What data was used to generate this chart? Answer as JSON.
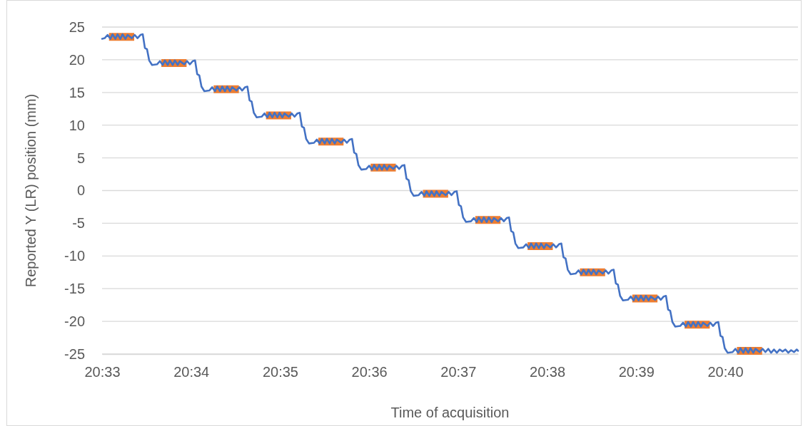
{
  "chart_data": {
    "type": "line",
    "xlabel": "Time of acquisition",
    "ylabel": "Reported Y (LR) position (mm)",
    "xlim": [
      20.55,
      20.6803
    ],
    "xticks": [
      {
        "value": 20.55,
        "label": "20:33"
      },
      {
        "value": 20.566667,
        "label": "20:34"
      },
      {
        "value": 20.583333,
        "label": "20:35"
      },
      {
        "value": 20.6,
        "label": "20:36"
      },
      {
        "value": 20.616667,
        "label": "20:37"
      },
      {
        "value": 20.633333,
        "label": "20:38"
      },
      {
        "value": 20.65,
        "label": "20:39"
      },
      {
        "value": 20.666667,
        "label": "20:40"
      }
    ],
    "ylim": [
      -25,
      25
    ],
    "yticks": [
      -25,
      -20,
      -15,
      -10,
      -5,
      0,
      5,
      10,
      15,
      20,
      25
    ],
    "grid": "y",
    "marker": "none",
    "line_style": "solid",
    "series": [
      {
        "color": "#ed7d31",
        "x": [
          20.5513,
          20.55602,
          20.5565,
          20.5611,
          20.56582,
          20.5663,
          20.57089,
          20.57561,
          20.5761,
          20.58069,
          20.58541,
          20.5859,
          20.59049,
          20.59521,
          20.5957,
          20.60028,
          20.605,
          20.6055,
          20.61008,
          20.6148,
          20.6153,
          20.61988,
          20.6246,
          20.6251,
          20.62967,
          20.63439,
          20.6349,
          20.63947,
          20.64419,
          20.6447,
          20.64927,
          20.65399,
          20.6545,
          20.65906,
          20.66378,
          20.6643,
          20.66886,
          20.67358
        ],
        "values": [
          23.5,
          23.5,
          null,
          19.5,
          19.5,
          null,
          15.5,
          15.5,
          null,
          11.5,
          11.5,
          null,
          7.5,
          7.5,
          null,
          3.5,
          3.5,
          null,
          -0.5,
          -0.5,
          null,
          -4.5,
          -4.5,
          null,
          -8.5,
          -8.5,
          null,
          -12.5,
          -12.5,
          null,
          -16.5,
          -16.5,
          null,
          -20.5,
          -20.5,
          null,
          -24.5,
          -24.5
        ]
      },
      {
        "color": "#4472c4",
        "x": [
          20.55,
          20.55049,
          20.55103,
          20.55156,
          20.55196,
          20.5525,
          20.5529,
          20.55343,
          20.55383,
          20.55437,
          20.55477,
          20.55557,
          20.55611,
          20.55664,
          20.55718,
          20.55762,
          20.55802,
          20.55842,
          20.55882,
          20.55936,
          20.56029,
          20.56083,
          20.56136,
          20.56176,
          20.5623,
          20.5627,
          20.56323,
          20.56363,
          20.56417,
          20.56457,
          20.56537,
          20.56591,
          20.56644,
          20.56698,
          20.56741,
          20.56781,
          20.56821,
          20.56861,
          20.56915,
          20.57008,
          20.57062,
          20.57115,
          20.57155,
          20.57209,
          20.57249,
          20.57302,
          20.57342,
          20.57396,
          20.57436,
          20.57516,
          20.5757,
          20.57623,
          20.57677,
          20.57721,
          20.57761,
          20.57801,
          20.57841,
          20.57895,
          20.57988,
          20.58042,
          20.58095,
          20.58135,
          20.58189,
          20.58229,
          20.58282,
          20.58322,
          20.58376,
          20.58416,
          20.58496,
          20.5855,
          20.58603,
          20.58657,
          20.58701,
          20.58741,
          20.58781,
          20.58821,
          20.58875,
          20.58968,
          20.59022,
          20.59075,
          20.59115,
          20.59169,
          20.59209,
          20.59262,
          20.59302,
          20.59356,
          20.59396,
          20.59476,
          20.5953,
          20.59583,
          20.59637,
          20.5968,
          20.5972,
          20.5976,
          20.598,
          20.59854,
          20.59947,
          20.60001,
          20.60054,
          20.60094,
          20.60148,
          20.60188,
          20.60241,
          20.60281,
          20.60335,
          20.60375,
          20.60455,
          20.60509,
          20.60562,
          20.60616,
          20.6066,
          20.607,
          20.6074,
          20.6078,
          20.60834,
          20.60927,
          20.60981,
          20.61034,
          20.61074,
          20.61128,
          20.61168,
          20.61221,
          20.61261,
          20.61315,
          20.61355,
          20.61435,
          20.61489,
          20.61542,
          20.61596,
          20.6164,
          20.6168,
          20.6172,
          20.6176,
          20.61814,
          20.61907,
          20.61961,
          20.62014,
          20.62054,
          20.62108,
          20.62148,
          20.62201,
          20.62241,
          20.62295,
          20.62335,
          20.62415,
          20.62469,
          20.62522,
          20.62576,
          20.62619,
          20.62659,
          20.62699,
          20.62739,
          20.62793,
          20.62886,
          20.6294,
          20.62993,
          20.63033,
          20.63087,
          20.63127,
          20.6318,
          20.6322,
          20.63274,
          20.63314,
          20.63394,
          20.63448,
          20.63501,
          20.63555,
          20.63599,
          20.63639,
          20.63679,
          20.63719,
          20.63773,
          20.63866,
          20.6392,
          20.63973,
          20.64013,
          20.64067,
          20.64107,
          20.6416,
          20.642,
          20.64254,
          20.64294,
          20.64374,
          20.64428,
          20.64481,
          20.64535,
          20.64579,
          20.64619,
          20.64659,
          20.64699,
          20.64753,
          20.64846,
          20.649,
          20.64953,
          20.64993,
          20.65047,
          20.65087,
          20.6514,
          20.6518,
          20.65234,
          20.65274,
          20.65354,
          20.65408,
          20.65461,
          20.65515,
          20.65558,
          20.65598,
          20.65638,
          20.65678,
          20.65732,
          20.65825,
          20.65879,
          20.65932,
          20.65972,
          20.66026,
          20.66066,
          20.66119,
          20.66159,
          20.66213,
          20.66253,
          20.66333,
          20.66387,
          20.6644,
          20.66494,
          20.66538,
          20.66578,
          20.66618,
          20.66658,
          20.66712,
          20.66805,
          20.66859,
          20.66912,
          20.66952,
          20.67006,
          20.67046,
          20.67099,
          20.67139,
          20.67193,
          20.67233,
          20.67313,
          20.67367,
          20.6742,
          20.67474,
          20.67527,
          20.6758,
          20.67634,
          20.67687,
          20.67741,
          20.67794,
          20.67848,
          20.67901,
          20.67955,
          20.68008,
          20.6803
        ],
        "values": [
          23.2,
          23.3,
          23.8,
          23.2,
          23.9,
          23.2,
          23.9,
          23.2,
          23.9,
          23.2,
          23.8,
          23.3,
          23.8,
          23.3,
          23.8,
          23.9,
          21.8,
          21.6,
          19.9,
          19.2,
          19.3,
          19.8,
          19.2,
          19.9,
          19.2,
          19.9,
          19.2,
          19.9,
          19.2,
          19.8,
          19.3,
          19.8,
          19.3,
          19.8,
          19.9,
          17.8,
          17.6,
          15.9,
          15.2,
          15.3,
          15.8,
          15.2,
          15.9,
          15.2,
          15.9,
          15.2,
          15.9,
          15.2,
          15.8,
          15.3,
          15.8,
          15.3,
          15.8,
          15.9,
          13.8,
          13.6,
          11.9,
          11.2,
          11.3,
          11.8,
          11.2,
          11.9,
          11.2,
          11.9,
          11.2,
          11.9,
          11.2,
          11.8,
          11.3,
          11.8,
          11.3,
          11.8,
          11.9,
          9.8,
          9.6,
          7.9,
          7.2,
          7.3,
          7.8,
          7.2,
          7.9,
          7.2,
          7.9,
          7.2,
          7.9,
          7.2,
          7.8,
          7.3,
          7.8,
          7.3,
          7.8,
          7.9,
          5.8,
          5.6,
          3.9,
          3.2,
          3.3,
          3.8,
          3.2,
          3.9,
          3.2,
          3.9,
          3.2,
          3.9,
          3.2,
          3.8,
          3.3,
          3.8,
          3.3,
          3.8,
          3.9,
          1.8,
          1.6,
          -0.1,
          -0.8,
          -0.7,
          -0.2,
          -0.8,
          -0.1,
          -0.8,
          -0.1,
          -0.8,
          -0.1,
          -0.8,
          -0.2,
          -0.7,
          -0.2,
          -0.7,
          -0.2,
          -0.1,
          -2.2,
          -2.4,
          -4.1,
          -4.8,
          -4.7,
          -4.2,
          -4.8,
          -4.1,
          -4.8,
          -4.1,
          -4.8,
          -4.1,
          -4.8,
          -4.2,
          -4.7,
          -4.2,
          -4.7,
          -4.2,
          -4.1,
          -6.2,
          -6.4,
          -8.1,
          -8.8,
          -8.7,
          -8.2,
          -8.8,
          -8.1,
          -8.8,
          -8.1,
          -8.8,
          -8.1,
          -8.8,
          -8.2,
          -8.7,
          -8.2,
          -8.7,
          -8.2,
          -8.1,
          -10.2,
          -10.4,
          -12.1,
          -12.8,
          -12.7,
          -12.2,
          -12.8,
          -12.1,
          -12.8,
          -12.1,
          -12.8,
          -12.1,
          -12.8,
          -12.2,
          -12.7,
          -12.2,
          -12.7,
          -12.2,
          -12.1,
          -14.2,
          -14.4,
          -16.1,
          -16.8,
          -16.7,
          -16.2,
          -16.8,
          -16.1,
          -16.8,
          -16.1,
          -16.8,
          -16.1,
          -16.8,
          -16.2,
          -16.7,
          -16.2,
          -16.7,
          -16.2,
          -16.1,
          -18.2,
          -18.4,
          -20.1,
          -20.8,
          -20.7,
          -20.2,
          -20.8,
          -20.1,
          -20.8,
          -20.1,
          -20.8,
          -20.1,
          -20.8,
          -20.2,
          -20.7,
          -20.2,
          -20.7,
          -20.2,
          -20.1,
          -22.2,
          -22.4,
          -24.1,
          -24.8,
          -24.7,
          -24.2,
          -24.8,
          -24.1,
          -24.8,
          -24.1,
          -24.8,
          -24.1,
          -24.8,
          -24.2,
          -24.7,
          -24.2,
          -24.7,
          -24.2,
          -24.8,
          -24.3,
          -24.8,
          -24.3,
          -24.6,
          -24.3,
          -24.8,
          -24.4,
          -24.7,
          -24.3,
          -24.5
        ]
      }
    ]
  }
}
